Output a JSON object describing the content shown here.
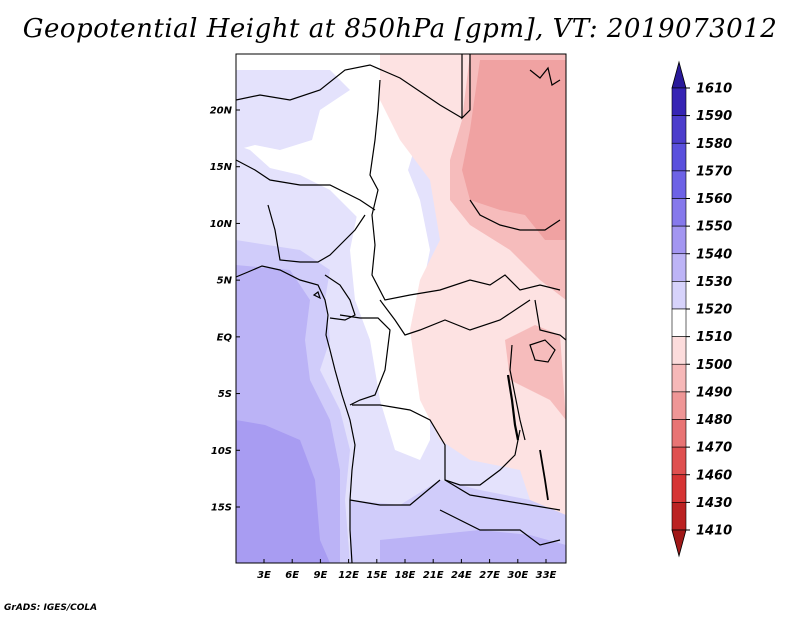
{
  "title": "Geopotential Height at 850hPa [gpm], VT: 2019073012",
  "credit": "GrADS: IGES/COLA",
  "map": {
    "lat_ticks": [
      "20N",
      "15N",
      "10N",
      "5N",
      "EQ",
      "5S",
      "10S",
      "15S"
    ],
    "lon_ticks": [
      "3E",
      "6E",
      "9E",
      "12E",
      "15E",
      "18E",
      "21E",
      "24E",
      "27E",
      "30E",
      "33E"
    ],
    "lat_values": [
      20,
      15,
      10,
      5,
      0,
      -5,
      -10,
      -15
    ],
    "lon_values": [
      3,
      6,
      9,
      12,
      15,
      18,
      21,
      24,
      27,
      30,
      33
    ],
    "lon_range": [
      0,
      35
    ],
    "lat_range": [
      -20,
      25
    ]
  },
  "colorbar": {
    "labels": [
      "1610",
      "1590",
      "1580",
      "1570",
      "1560",
      "1550",
      "1540",
      "1530",
      "1520",
      "1510",
      "1500",
      "1490",
      "1480",
      "1470",
      "1460",
      "1430",
      "1410"
    ],
    "colors": [
      "#2a1a9a",
      "#3624b4",
      "#4c3dcc",
      "#5a50dd",
      "#6d62e6",
      "#8679ec",
      "#a396f1",
      "#bdb4f6",
      "#d7d3fb",
      "#ffffff",
      "#fcdcdc",
      "#f6b8b8",
      "#ef9696",
      "#e87474",
      "#df5050",
      "#d63434",
      "#bb2222",
      "#a01818"
    ]
  },
  "field_colors": {
    "c1540": "#bbb3f6",
    "c1530": "#d0ccfa",
    "c1520": "#e4e2fc",
    "c1510": "#ffffff",
    "c1500": "#fde2e2",
    "c1490": "#f6bcbc",
    "c1480": "#f0a2a2",
    "c1550": "#a89cf2"
  }
}
